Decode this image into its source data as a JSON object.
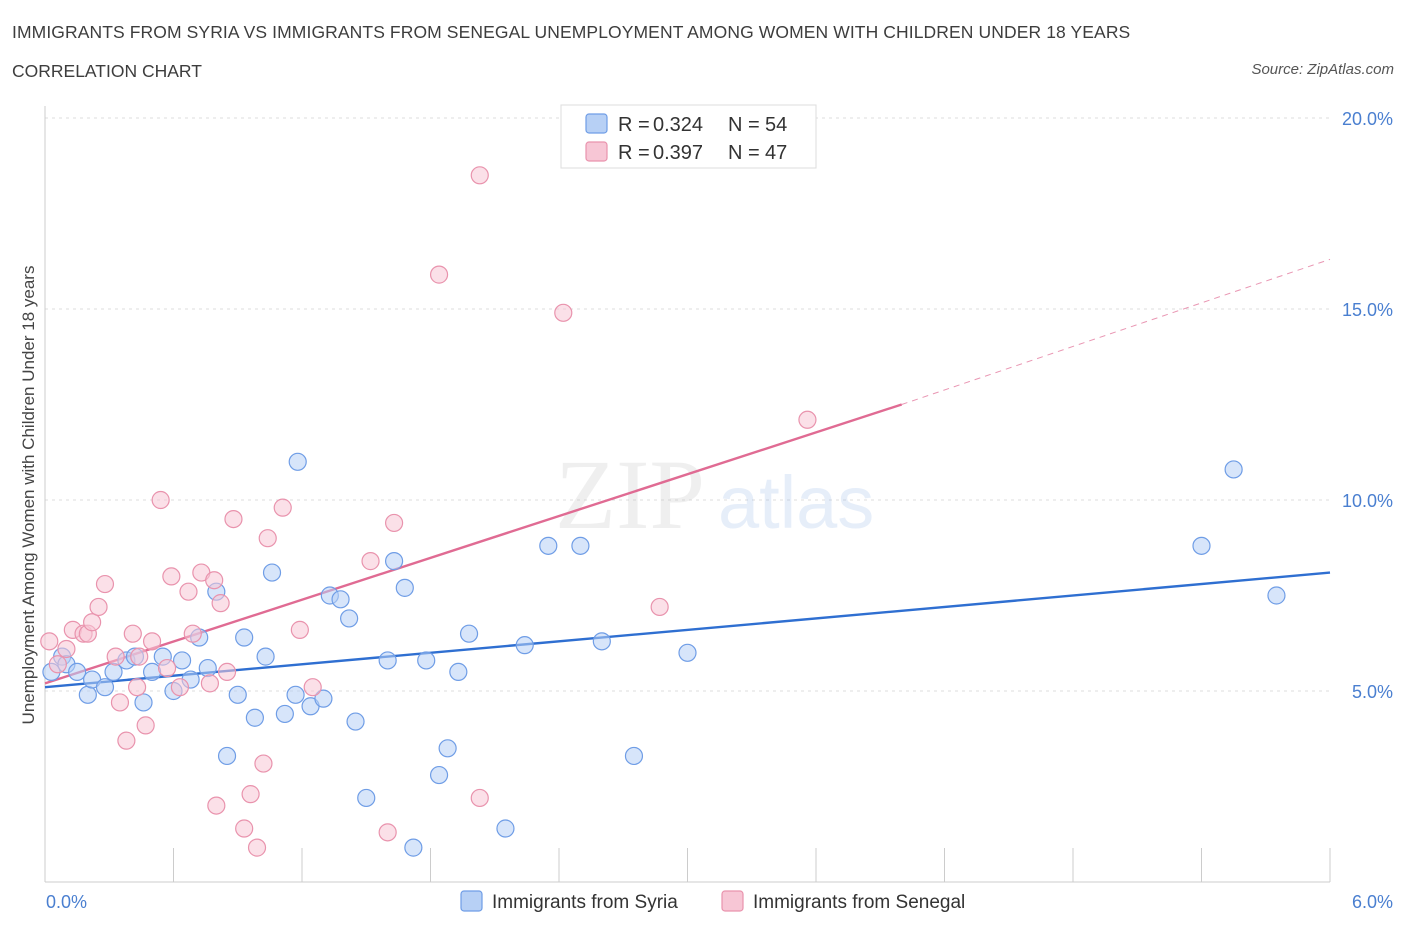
{
  "chart_data": {
    "type": "scatter",
    "title": "IMMIGRANTS FROM SYRIA VS IMMIGRANTS FROM SENEGAL UNEMPLOYMENT AMONG WOMEN WITH CHILDREN UNDER 18 YEARS",
    "subtitle": "CORRELATION CHART",
    "source": "Source: ZipAtlas.com",
    "ylabel": "Unemployment Among Women with Children Under 18 years",
    "xlabel": "",
    "xlim": [
      0,
      6
    ],
    "ylim": [
      0,
      20
    ],
    "x_tick_labels": [
      "0.0%",
      "6.0%"
    ],
    "y_ticks": [
      5,
      10,
      15,
      20
    ],
    "y_tick_labels": [
      "5.0%",
      "10.0%",
      "15.0%",
      "20.0%"
    ],
    "grid": true,
    "legend_position": "top-center",
    "watermark": "ZIPatlas",
    "series": [
      {
        "name": "Immigrants from Syria",
        "color": "#6f9de6",
        "fill": "#b7d0f5",
        "stats": {
          "R_label": "R = ",
          "R": "0.324",
          "N_label": "N = ",
          "N": "54"
        },
        "trend": {
          "x0": 0.0,
          "y0": 5.1,
          "x1": 6.0,
          "y1": 8.1,
          "color": "#2f6fd1"
        },
        "points": [
          [
            0.03,
            5.5
          ],
          [
            0.08,
            5.9
          ],
          [
            0.1,
            5.7
          ],
          [
            0.15,
            5.5
          ],
          [
            0.2,
            4.9
          ],
          [
            0.22,
            5.3
          ],
          [
            0.28,
            5.1
          ],
          [
            0.32,
            5.5
          ],
          [
            0.38,
            5.8
          ],
          [
            0.42,
            5.9
          ],
          [
            0.46,
            4.7
          ],
          [
            0.5,
            5.5
          ],
          [
            0.55,
            5.9
          ],
          [
            0.6,
            5.0
          ],
          [
            0.64,
            5.8
          ],
          [
            0.68,
            5.3
          ],
          [
            0.72,
            6.4
          ],
          [
            0.76,
            5.6
          ],
          [
            0.8,
            7.6
          ],
          [
            0.85,
            3.3
          ],
          [
            0.9,
            4.9
          ],
          [
            0.93,
            6.4
          ],
          [
            0.98,
            4.3
          ],
          [
            1.03,
            5.9
          ],
          [
            1.06,
            8.1
          ],
          [
            1.12,
            4.4
          ],
          [
            1.17,
            4.9
          ],
          [
            1.18,
            11.0
          ],
          [
            1.24,
            4.6
          ],
          [
            1.3,
            4.8
          ],
          [
            1.33,
            7.5
          ],
          [
            1.38,
            7.4
          ],
          [
            1.42,
            6.9
          ],
          [
            1.45,
            4.2
          ],
          [
            1.5,
            2.2
          ],
          [
            1.6,
            5.8
          ],
          [
            1.63,
            8.4
          ],
          [
            1.68,
            7.7
          ],
          [
            1.72,
            0.9
          ],
          [
            1.78,
            5.8
          ],
          [
            1.84,
            2.8
          ],
          [
            1.88,
            3.5
          ],
          [
            1.93,
            5.5
          ],
          [
            1.98,
            6.5
          ],
          [
            2.15,
            1.4
          ],
          [
            2.24,
            6.2
          ],
          [
            2.35,
            8.8
          ],
          [
            2.5,
            8.8
          ],
          [
            2.6,
            6.3
          ],
          [
            2.75,
            3.3
          ],
          [
            3.0,
            6.0
          ],
          [
            5.4,
            8.8
          ],
          [
            5.55,
            10.8
          ],
          [
            5.75,
            7.5
          ]
        ]
      },
      {
        "name": "Immigrants from Senegal",
        "color": "#e993ad",
        "fill": "#f7c6d5",
        "stats": {
          "R_label": "R = ",
          "R": "0.397",
          "N_label": "N = ",
          "N": "47"
        },
        "trend": {
          "x0": 0.0,
          "y0": 5.2,
          "x1": 4.0,
          "y1": 12.5,
          "color": "#e06b93"
        },
        "trend_extension": {
          "x0": 4.0,
          "y0": 12.5,
          "x1": 6.0,
          "y1": 16.3
        },
        "points": [
          [
            0.02,
            6.3
          ],
          [
            0.06,
            5.7
          ],
          [
            0.1,
            6.1
          ],
          [
            0.13,
            6.6
          ],
          [
            0.18,
            6.5
          ],
          [
            0.2,
            6.5
          ],
          [
            0.22,
            6.8
          ],
          [
            0.25,
            7.2
          ],
          [
            0.28,
            7.8
          ],
          [
            0.33,
            5.9
          ],
          [
            0.35,
            4.7
          ],
          [
            0.38,
            3.7
          ],
          [
            0.41,
            6.5
          ],
          [
            0.44,
            5.9
          ],
          [
            0.47,
            4.1
          ],
          [
            0.5,
            6.3
          ],
          [
            0.54,
            10.0
          ],
          [
            0.57,
            5.6
          ],
          [
            0.59,
            8.0
          ],
          [
            0.63,
            5.1
          ],
          [
            0.67,
            7.6
          ],
          [
            0.69,
            6.5
          ],
          [
            0.73,
            8.1
          ],
          [
            0.77,
            5.2
          ],
          [
            0.79,
            7.9
          ],
          [
            0.8,
            2.0
          ],
          [
            0.82,
            7.3
          ],
          [
            0.85,
            5.5
          ],
          [
            0.88,
            9.5
          ],
          [
            0.93,
            1.4
          ],
          [
            0.96,
            2.3
          ],
          [
            0.99,
            0.9
          ],
          [
            1.02,
            3.1
          ],
          [
            1.04,
            9.0
          ],
          [
            1.11,
            9.8
          ],
          [
            1.19,
            6.6
          ],
          [
            1.25,
            5.1
          ],
          [
            1.52,
            8.4
          ],
          [
            1.6,
            1.3
          ],
          [
            1.63,
            9.4
          ],
          [
            1.84,
            15.9
          ],
          [
            2.03,
            2.2
          ],
          [
            2.03,
            18.5
          ],
          [
            2.42,
            14.9
          ],
          [
            2.87,
            7.2
          ],
          [
            3.56,
            12.1
          ],
          [
            0.43,
            5.1
          ]
        ]
      }
    ]
  }
}
